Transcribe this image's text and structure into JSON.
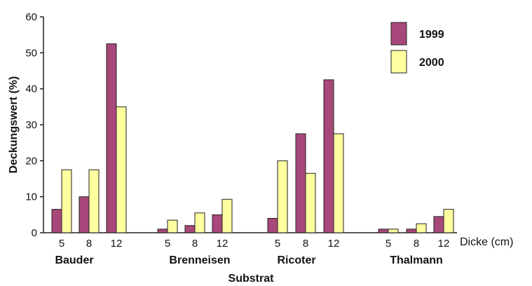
{
  "chart_data": {
    "type": "bar",
    "groups": [
      {
        "name": "Bauder",
        "categories": [
          "5",
          "8",
          "12"
        ]
      },
      {
        "name": "Brenneisen",
        "categories": [
          "5",
          "8",
          "12"
        ]
      },
      {
        "name": "Ricoter",
        "categories": [
          "5",
          "8",
          "12"
        ]
      },
      {
        "name": "Thalmann",
        "categories": [
          "5",
          "8",
          "12"
        ]
      }
    ],
    "series": [
      {
        "name": "1999",
        "color": "#a8487a",
        "values": [
          6.5,
          10,
          52.5,
          1,
          2,
          5,
          4,
          27.5,
          42.5,
          1,
          1,
          4.5
        ]
      },
      {
        "name": "2000",
        "color": "#ffffa0",
        "values": [
          17.5,
          17.5,
          35,
          3.5,
          5.5,
          9.3,
          20,
          16.5,
          27.5,
          1,
          2.5,
          6.5
        ]
      }
    ],
    "ylabel": "Deckungswert (%)",
    "xlabel": "Substrat",
    "x_unit_label": "Dicke (cm)",
    "ylim": [
      0,
      60
    ],
    "yticks": [
      "0",
      "10",
      "20",
      "30",
      "40",
      "50",
      "60"
    ],
    "legend_position": "top-right",
    "grid": false
  }
}
